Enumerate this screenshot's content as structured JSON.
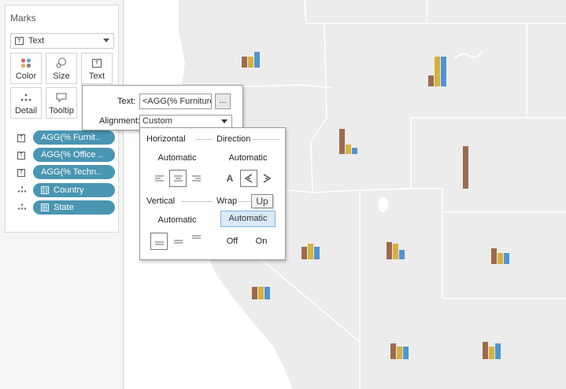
{
  "marks": {
    "title": "Marks",
    "mark_type": "Text",
    "buttons": {
      "color": "Color",
      "size": "Size",
      "text": "Text",
      "detail": "Detail",
      "tooltip": "Tooltip"
    },
    "pills": [
      {
        "label": "AGG(% Furnit..",
        "icon": "text-icon"
      },
      {
        "label": "AGG(% Office ..",
        "icon": "text-icon"
      },
      {
        "label": "AGG(% Techn..",
        "icon": "text-icon"
      },
      {
        "label": "Country",
        "icon": "detail-icon",
        "prefix": "⊟"
      },
      {
        "label": "State",
        "icon": "detail-icon",
        "prefix": "⊞"
      }
    ]
  },
  "text_popup": {
    "text_label": "Text:",
    "text_value": "<AGG(% Furniture",
    "more_button": "...",
    "alignment_label": "Alignment:",
    "alignment_value": "Custom"
  },
  "alignment_panel": {
    "horizontal_label": "Horizontal",
    "horizontal_value": "Automatic",
    "direction_label": "Direction",
    "direction_value": "Automatic",
    "vertical_label": "Vertical",
    "vertical_value": "Automatic",
    "wrap_label": "Wrap",
    "wrap_value": "Automatic",
    "wrap_off": "Off",
    "wrap_on": "On",
    "direction_normal_glyph": "A"
  },
  "tooltip": {
    "text": "Up"
  },
  "colors": {
    "furniture": "#9e6a4e",
    "office": "#d5b13c",
    "technology": "#4f94d4",
    "pill": "#4996b2",
    "map_fill": "#eeeeee",
    "map_border": "#ffffff"
  }
}
